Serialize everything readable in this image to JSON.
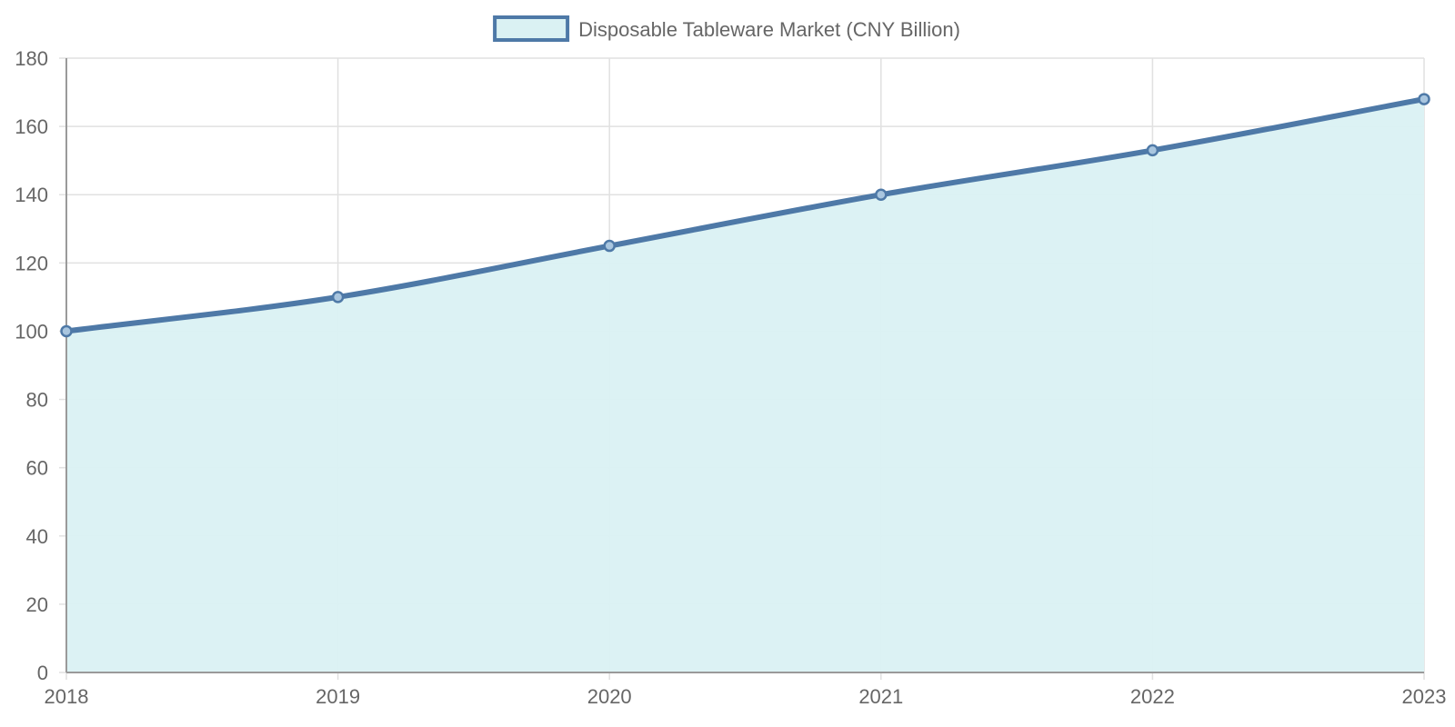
{
  "chart_data": {
    "type": "area",
    "title": "",
    "xlabel": "",
    "ylabel": "",
    "x": [
      "2018",
      "2019",
      "2020",
      "2021",
      "2022",
      "2023"
    ],
    "series": [
      {
        "name": "Disposable Tableware Market (CNY Billion)",
        "values": [
          100,
          110,
          125,
          140,
          153,
          168
        ],
        "line_color": "#4e79a7",
        "fill_color": "#daf1f3"
      }
    ],
    "ylim": [
      0,
      180
    ],
    "y_ticks": [
      0,
      20,
      40,
      60,
      80,
      100,
      120,
      140,
      160,
      180
    ],
    "grid": true,
    "legend_position": "top-center"
  }
}
